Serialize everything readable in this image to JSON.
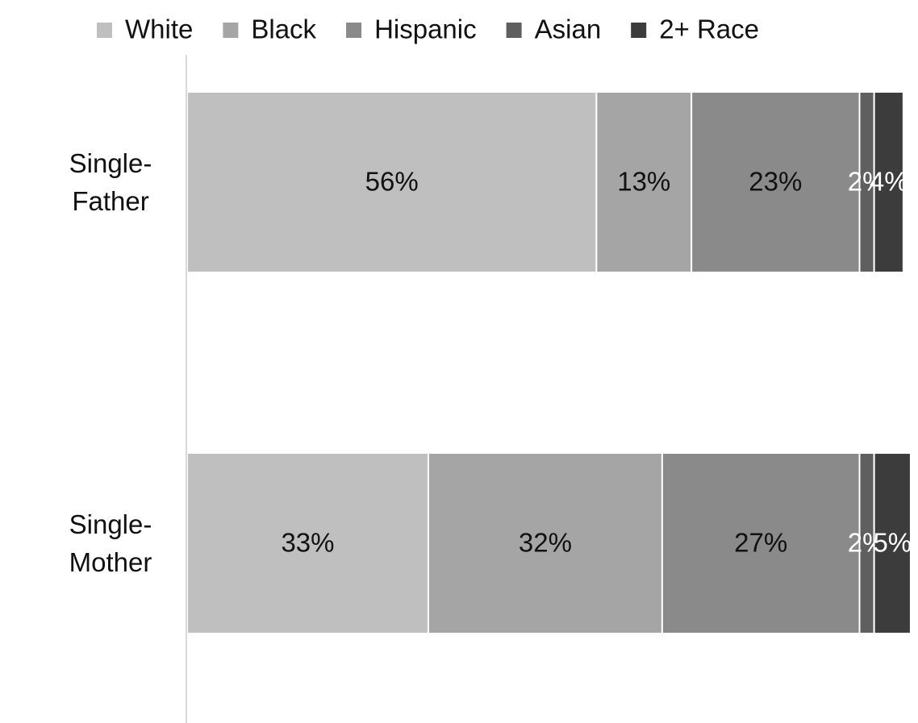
{
  "chart_data": {
    "type": "stacked-bar-horizontal",
    "categories": [
      "Single-Father",
      "Single-Mother"
    ],
    "series": [
      {
        "name": "White",
        "color": "#bfbfbf",
        "values": [
          56,
          33
        ],
        "value_labels": [
          "56%",
          "33%"
        ]
      },
      {
        "name": "Black",
        "color": "#a5a5a5",
        "values": [
          13,
          32
        ],
        "value_labels": [
          "13%",
          "32%"
        ]
      },
      {
        "name": "Hispanic",
        "color": "#8a8a8a",
        "values": [
          23,
          27
        ],
        "value_labels": [
          "23%",
          "27%"
        ]
      },
      {
        "name": "Asian",
        "color": "#5f5f5f",
        "values": [
          2,
          2
        ],
        "value_labels": [
          "2%",
          "2%"
        ]
      },
      {
        "name": "2+ Race",
        "color": "#3c3c3c",
        "values": [
          4,
          5
        ],
        "value_labels": [
          "4%",
          "5%"
        ]
      }
    ],
    "xlim": [
      0,
      100
    ],
    "legend": "top"
  }
}
